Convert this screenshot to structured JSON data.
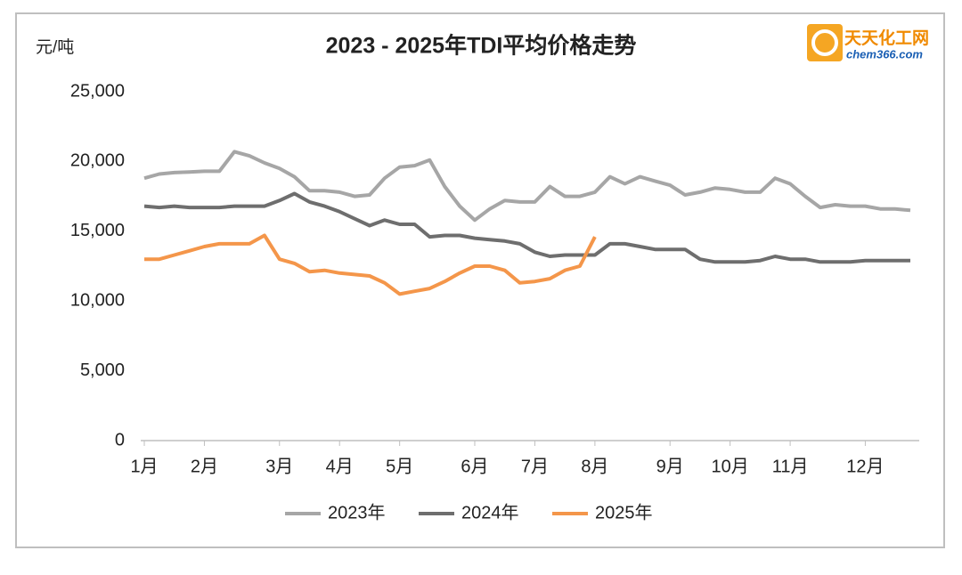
{
  "chart_data": {
    "type": "line",
    "title": "2023 - 2025年TDI平均价格走势",
    "y_axis_label": "元/吨",
    "logo": {
      "name": "天天化工网",
      "site": "chem366.com"
    },
    "categories": [
      "1月",
      null,
      null,
      null,
      "2月",
      null,
      null,
      null,
      null,
      "3月",
      null,
      null,
      null,
      "4月",
      null,
      null,
      null,
      "5月",
      null,
      null,
      null,
      null,
      "6月",
      null,
      null,
      null,
      "7月",
      null,
      null,
      null,
      "8月",
      null,
      null,
      null,
      null,
      "9月",
      null,
      null,
      null,
      "10月",
      null,
      null,
      null,
      "11月",
      null,
      null,
      null,
      null,
      "12月",
      null,
      null,
      null
    ],
    "series": [
      {
        "name": "2023年",
        "color": "#a6a6a6",
        "values": [
          18800,
          19100,
          19200,
          19250,
          19300,
          19300,
          20700,
          20400,
          19900,
          19500,
          18900,
          17900,
          17900,
          17800,
          17500,
          17600,
          18800,
          19600,
          19700,
          20100,
          18200,
          16800,
          15800,
          16600,
          17200,
          17100,
          17100,
          18200,
          17500,
          17500,
          17800,
          18900,
          18400,
          18900,
          18600,
          18300,
          17600,
          17800,
          18100,
          18000,
          17800,
          17800,
          18800,
          18400,
          17500,
          16700,
          16900,
          16800,
          16800,
          16600,
          16600,
          16500
        ]
      },
      {
        "name": "2024年",
        "color": "#6e6e6e",
        "values": [
          16800,
          16700,
          16800,
          16700,
          16700,
          16700,
          16800,
          16800,
          16800,
          17200,
          17700,
          17100,
          16800,
          16400,
          15900,
          15400,
          15800,
          15500,
          15500,
          14600,
          14700,
          14700,
          14500,
          14400,
          14300,
          14100,
          13500,
          13200,
          13300,
          13300,
          13300,
          14100,
          14100,
          13900,
          13700,
          13700,
          13700,
          13000,
          12800,
          12800,
          12800,
          12900,
          13200,
          13000,
          13000,
          12800,
          12800,
          12800,
          12900,
          12900,
          12900,
          12900
        ]
      },
      {
        "name": "2025年",
        "color": "#f4964a",
        "values": [
          13000,
          13000,
          13300,
          13600,
          13900,
          14100,
          14100,
          14100,
          14700,
          13000,
          12700,
          12100,
          12200,
          12000,
          11900,
          11800,
          11300,
          10500,
          10700,
          10900,
          11400,
          12000,
          12500,
          12500,
          12200,
          11300,
          11400,
          11600,
          12200,
          12500,
          14600,
          null,
          null,
          null,
          null,
          null,
          null,
          null,
          null,
          null,
          null,
          null,
          null,
          null,
          null,
          null,
          null,
          null,
          null,
          null,
          null,
          null
        ]
      }
    ],
    "ylim": [
      0,
      25000
    ],
    "yticks": [
      0,
      {
        "value": 5000,
        "label": "5,000"
      },
      {
        "value": 10000,
        "label": "10,000"
      },
      {
        "value": 15000,
        "label": "15,000"
      },
      {
        "value": 20000,
        "label": "20,000"
      },
      {
        "value": 25000,
        "label": "25,000"
      }
    ],
    "grid": false,
    "legend": "bottom"
  }
}
